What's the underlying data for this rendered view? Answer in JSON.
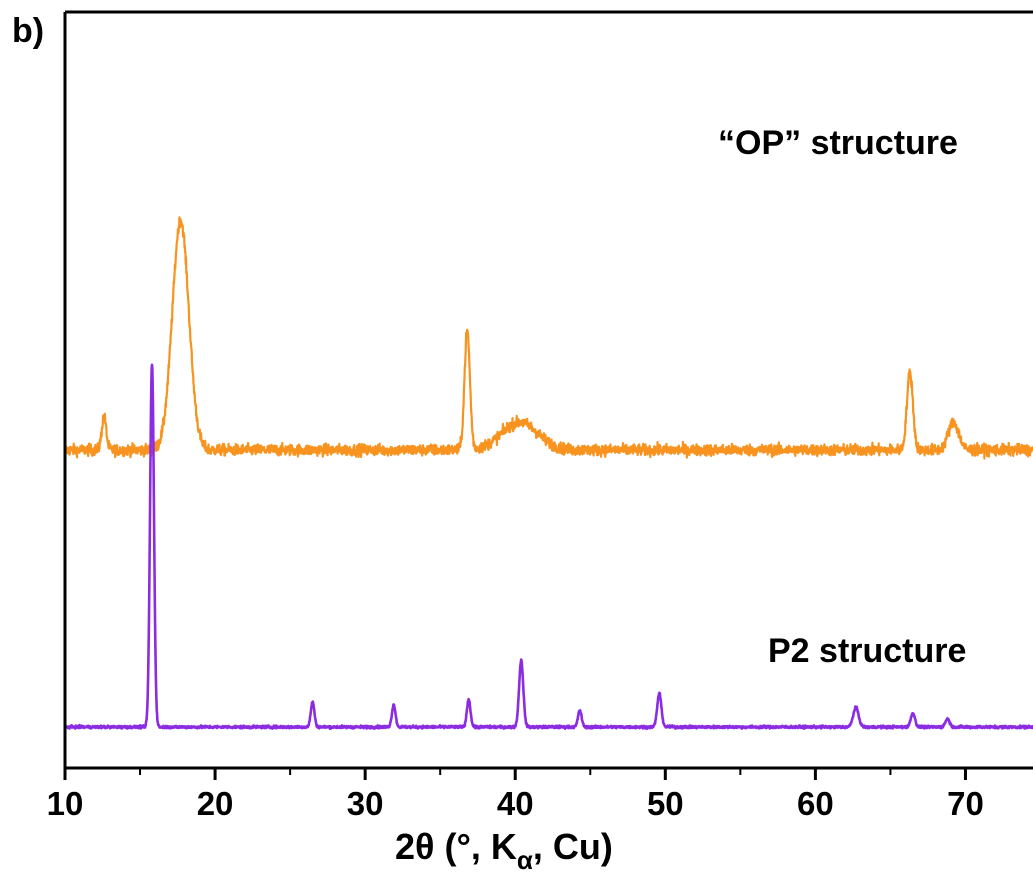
{
  "panel_label": "b)",
  "chart_data": {
    "type": "line",
    "xlabel": {
      "prefix": "2θ (°, K",
      "subscript": "α",
      "suffix": ", Cu)"
    },
    "ylabel": "",
    "xlim": [
      10,
      74.5
    ],
    "xticks": [
      10,
      20,
      30,
      40,
      50,
      60,
      70
    ],
    "y_axis_ticks": false,
    "grid": false,
    "legend": "none",
    "series": [
      {
        "label": "“OP” structure",
        "color": "#f7931e",
        "offset": 1.0,
        "baseline": 0.0,
        "noise": 0.035,
        "peaks": [
          {
            "x": 12.6,
            "height": 0.12,
            "width": 0.15
          },
          {
            "x": 17.7,
            "height": 0.83,
            "width": 0.55
          },
          {
            "x": 36.8,
            "height": 0.43,
            "width": 0.18
          },
          {
            "x": 40.3,
            "height": 0.1,
            "width": 1.2
          },
          {
            "x": 66.3,
            "height": 0.28,
            "width": 0.2
          },
          {
            "x": 69.2,
            "height": 0.1,
            "width": 0.35
          }
        ]
      },
      {
        "label": "P2 structure",
        "color": "#8b2be2",
        "offset": 0.0,
        "baseline": 0.0,
        "noise": 0.008,
        "peaks": [
          {
            "x": 15.8,
            "height": 1.31,
            "width": 0.13
          },
          {
            "x": 26.5,
            "height": 0.09,
            "width": 0.12
          },
          {
            "x": 31.9,
            "height": 0.08,
            "width": 0.12
          },
          {
            "x": 36.9,
            "height": 0.1,
            "width": 0.12
          },
          {
            "x": 40.4,
            "height": 0.24,
            "width": 0.14
          },
          {
            "x": 44.3,
            "height": 0.06,
            "width": 0.12
          },
          {
            "x": 49.6,
            "height": 0.12,
            "width": 0.14
          },
          {
            "x": 62.7,
            "height": 0.07,
            "width": 0.18
          },
          {
            "x": 66.5,
            "height": 0.05,
            "width": 0.14
          },
          {
            "x": 68.8,
            "height": 0.03,
            "width": 0.14
          }
        ]
      }
    ]
  }
}
